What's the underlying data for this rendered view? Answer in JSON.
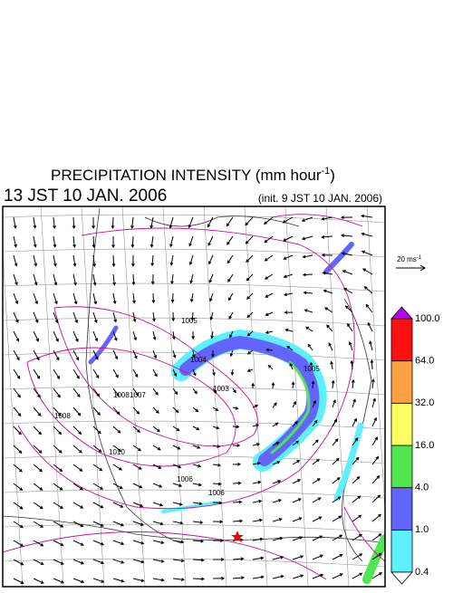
{
  "header": {
    "title": "PRECIPITATION INTENSITY (mm hour",
    "title_exponent": "-1",
    "title_end": ")",
    "valid_time": "13 JST 10 JAN. 2006",
    "init_time": "(init. 9 JST 10 JAN. 2006)"
  },
  "wind_scale": {
    "label": "20 ms",
    "exponent": "-1"
  },
  "map": {
    "contour_labels": [
      "1005",
      "1008",
      "1006",
      "1007",
      "1003",
      "1004",
      "1005",
      "1008",
      "1010",
      "1006"
    ]
  },
  "colorbar": {
    "ticks": [
      0.4,
      {
        "value": 1,
        "label": "1.0"
      },
      {
        "value": 4,
        "label": "4.0"
      },
      {
        "value": 16,
        "label": "16.0"
      },
      {
        "value": 32,
        "label": "32.0"
      },
      {
        "value": 64,
        "label": "64.0"
      },
      {
        "value": 100,
        "label": "100.0"
      }
    ],
    "colors": [
      "#5ff0ff",
      "#6464ff",
      "#50e650",
      "#ffff64",
      "#ffa040",
      "#ff1010"
    ],
    "over_color": "#b400ff",
    "under_color": "#ffffff"
  }
}
